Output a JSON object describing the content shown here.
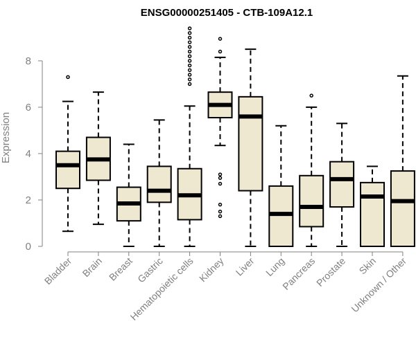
{
  "chart_data": {
    "type": "boxplot",
    "title": "ENSG00000251405 - CTB-109A12.1",
    "xlabel": "",
    "ylabel": "Expression",
    "ylim": [
      0,
      9.4
    ],
    "yticks": [
      0,
      2,
      4,
      6,
      8
    ],
    "grid": false,
    "colors": {
      "box_fill": "#EEE8D0",
      "stroke": "#000000",
      "axis_text": "#808080"
    },
    "categories": [
      "Bladder",
      "Brain",
      "Breast",
      "Gastric",
      "Hematopoietic cells",
      "Kidney",
      "Liver",
      "Lung",
      "Pancreas",
      "Prostate",
      "Skin",
      "Unknown / Other"
    ],
    "boxes": [
      {
        "min": 0.65,
        "q1": 2.5,
        "median": 3.5,
        "q3": 4.1,
        "max": 6.25,
        "outliers": [
          7.3
        ]
      },
      {
        "min": 0.95,
        "q1": 2.85,
        "median": 3.75,
        "q3": 4.7,
        "max": 6.65,
        "outliers": []
      },
      {
        "min": 0.0,
        "q1": 1.1,
        "median": 1.85,
        "q3": 2.55,
        "max": 4.4,
        "outliers": []
      },
      {
        "min": 0.0,
        "q1": 1.9,
        "median": 2.4,
        "q3": 3.45,
        "max": 5.45,
        "outliers": []
      },
      {
        "min": 0.0,
        "q1": 1.15,
        "median": 2.2,
        "q3": 3.35,
        "max": 6.05,
        "outliers": [
          7.0,
          7.2,
          7.4,
          7.6,
          7.8,
          8.0,
          8.2,
          8.4,
          8.6,
          8.8,
          9.0,
          9.2,
          9.4
        ]
      },
      {
        "min": 4.35,
        "q1": 5.55,
        "median": 6.1,
        "q3": 6.65,
        "max": 8.15,
        "outliers": [
          1.3,
          1.5,
          1.8,
          2.7,
          2.95,
          3.1,
          8.4,
          8.95
        ]
      },
      {
        "min": 0.0,
        "q1": 2.4,
        "median": 5.6,
        "q3": 6.45,
        "max": 8.5,
        "outliers": []
      },
      {
        "min": 0.0,
        "q1": 0.0,
        "median": 1.4,
        "q3": 2.6,
        "max": 5.2,
        "outliers": []
      },
      {
        "min": 0.0,
        "q1": 0.85,
        "median": 1.7,
        "q3": 3.05,
        "max": 6.0,
        "outliers": [
          6.5
        ]
      },
      {
        "min": 0.0,
        "q1": 1.7,
        "median": 2.9,
        "q3": 3.65,
        "max": 5.3,
        "outliers": []
      },
      {
        "min": 0.0,
        "q1": 0.0,
        "median": 2.15,
        "q3": 2.75,
        "max": 3.45,
        "outliers": []
      },
      {
        "min": 0.0,
        "q1": 0.0,
        "median": 1.95,
        "q3": 3.25,
        "max": 7.35,
        "outliers": []
      }
    ]
  }
}
